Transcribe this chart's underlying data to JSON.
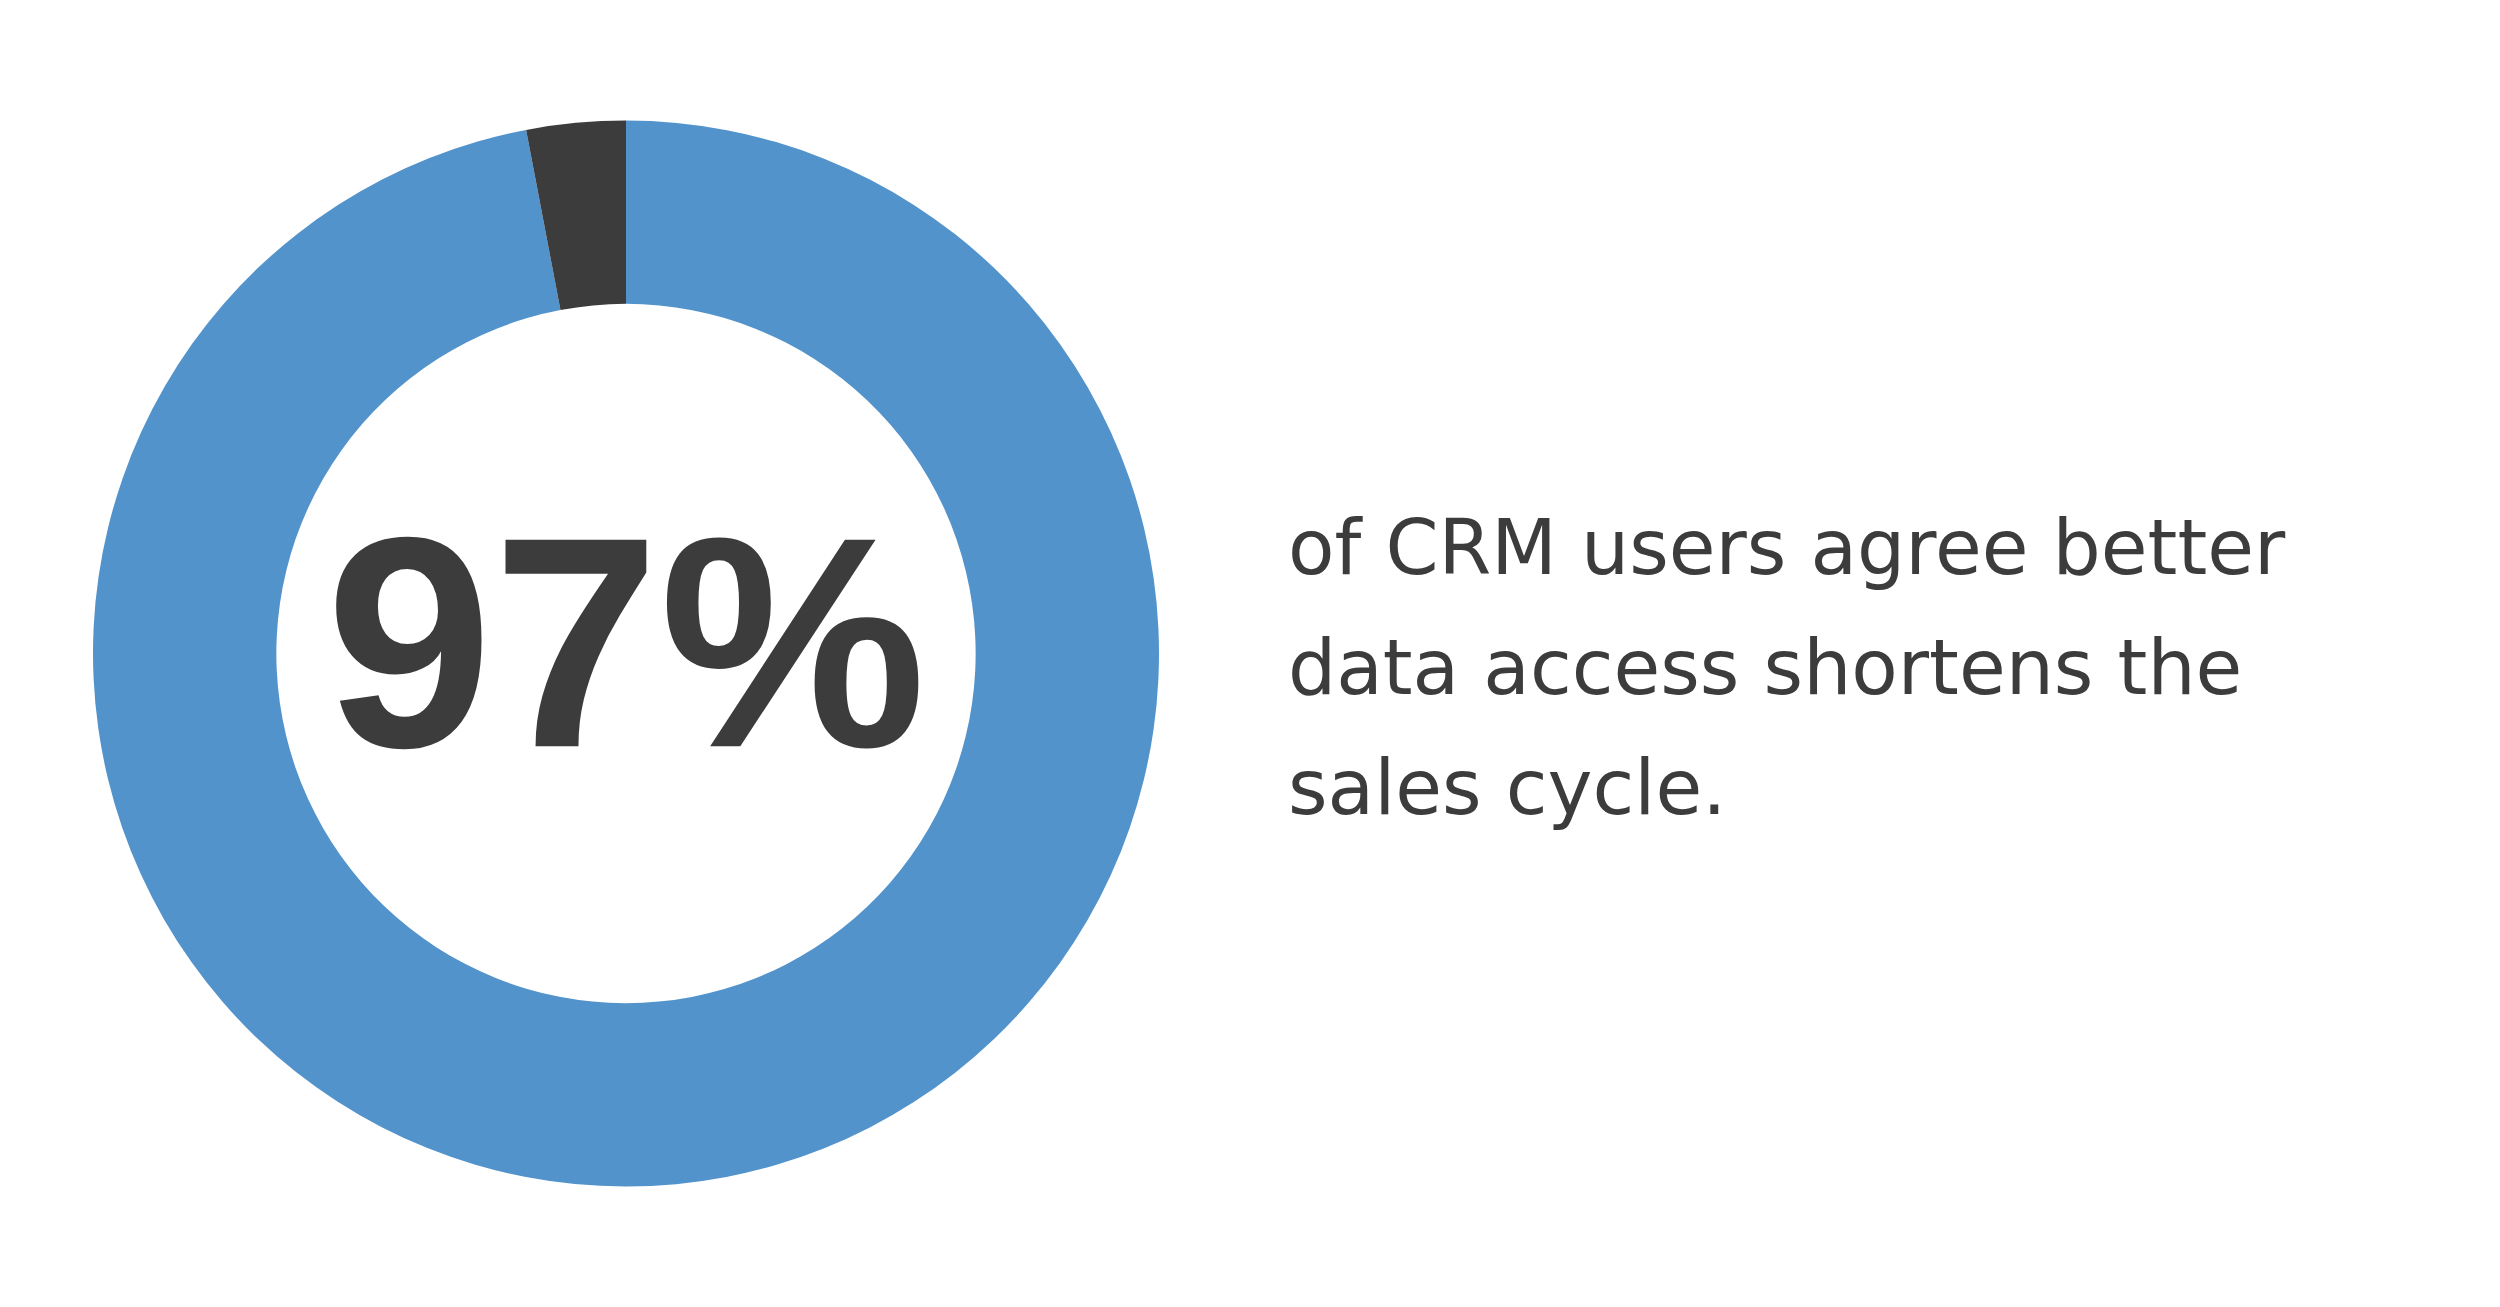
{
  "chart_data": {
    "type": "donut",
    "categories": [
      null,
      null
    ],
    "values": [
      97,
      3
    ],
    "colors": [
      "#5293cc",
      "#3c3c3c"
    ],
    "value_labels": [
      "97%",
      null
    ],
    "annotations": [
      "of CRM users agree better data access shortens the sales cycle."
    ]
  }
}
